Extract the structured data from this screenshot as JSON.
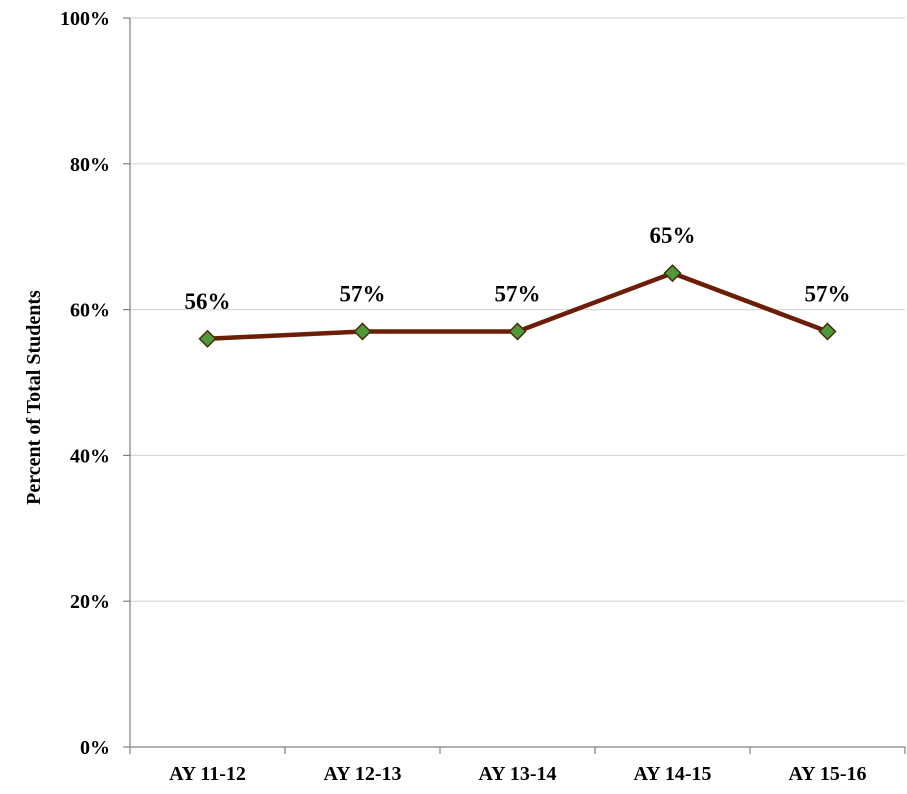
{
  "chart_data": {
    "type": "line",
    "title": "",
    "xlabel": "",
    "ylabel": "Percent of Total Students",
    "categories": [
      "AY 11-12",
      "AY 12-13",
      "AY 13-14",
      "AY 14-15",
      "AY 15-16"
    ],
    "series": [
      {
        "values": [
          56,
          57,
          57,
          65,
          57
        ],
        "data_labels": [
          "56%",
          "57%",
          "57%",
          "65%",
          "57%"
        ],
        "line_color": "#6b1e05",
        "marker": "diamond",
        "marker_fill": "#4e9a3a",
        "marker_edge": "#4a2a0a"
      }
    ],
    "ylim": [
      0,
      100
    ],
    "yticks": [
      0,
      20,
      40,
      60,
      80,
      100
    ],
    "ytick_labels": [
      "0%",
      "20%",
      "40%",
      "60%",
      "80%",
      "100%"
    ],
    "grid": true,
    "legend": false
  }
}
